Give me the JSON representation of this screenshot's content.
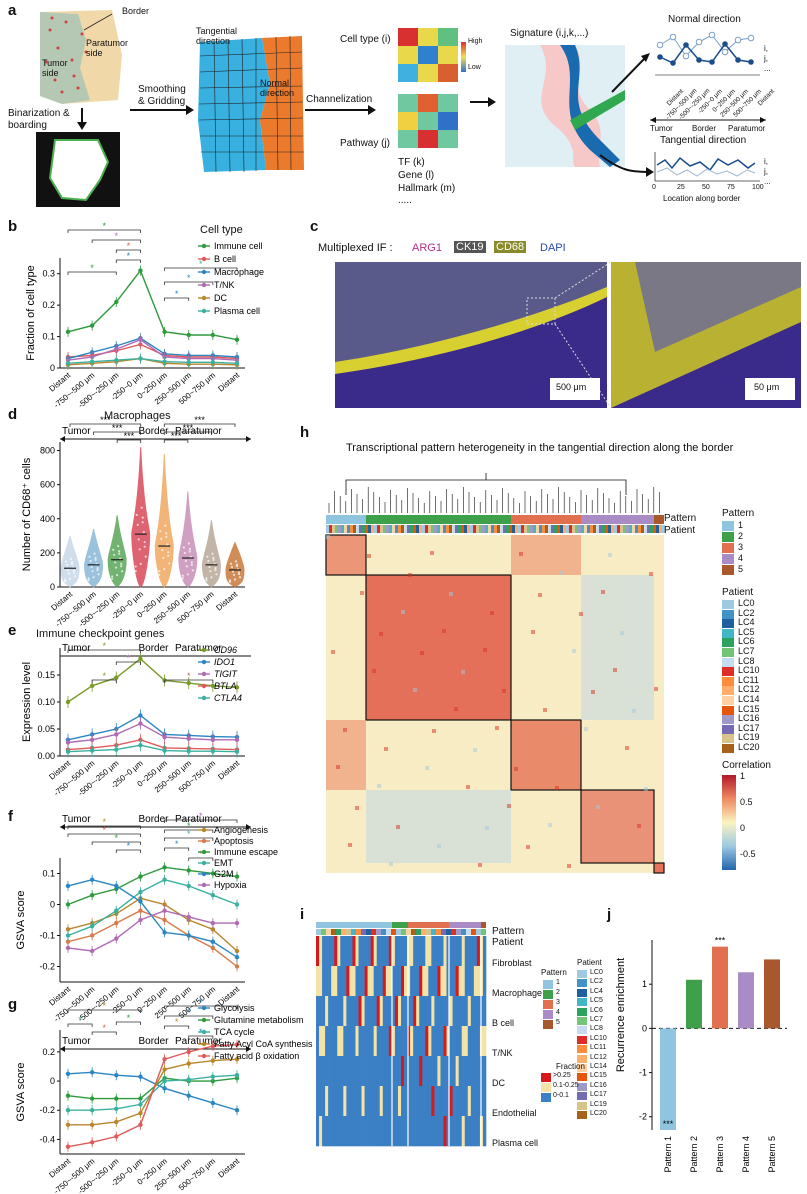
{
  "panel_a": {
    "letter": "a",
    "border": "Border",
    "paratumor_side": "Paratumor side",
    "tumor_side": "Tumor side",
    "binarization": "Binarization & boarding",
    "smoothing": "Smoothing & Gridding",
    "tangential_direction": "Tangential direction",
    "normal_direction": "Normal direction",
    "channelization": "Channelization",
    "cell_type": "Cell type (i)",
    "pathway": "Pathway (j)",
    "high": "High",
    "low": "Low",
    "tf": "TF (k)",
    "gene": "Gene (l)",
    "hallmark": "Hallmark (m)",
    "dots": ".....",
    "signature": "Signature (i,j,k,...)",
    "normal_title": "Normal direction",
    "tangential_title": "Tangential direction",
    "normal_ticks": [
      "Distant",
      "-750~-500 μm",
      "-500~-250 μm",
      "-250~0 μm",
      "0~250 μm",
      "250~500 μm",
      "500~750 μm",
      "Distant"
    ],
    "tumor": "Tumor",
    "border2": "Border",
    "paratumor": "Paratumor",
    "tang_ticks": [
      "0",
      "25",
      "50",
      "75",
      "100"
    ],
    "tang_xlabel": "Location along border",
    "side_labels": [
      "i,",
      "j,",
      "..."
    ]
  },
  "dist_ticks": [
    "Distant",
    "-750~-500 μm",
    "-500~-250 μm",
    "-250~0 μm",
    "0~250 μm",
    "250~500 μm",
    "500~750 μm",
    "Distant"
  ],
  "axis_group": {
    "tumor": "Tumor",
    "border": "Border",
    "paratumor": "Paratumor"
  },
  "panel_b": {
    "letter": "b",
    "legend_title": "Cell type",
    "ylabel": "Fraction of cell type",
    "sig": "*",
    "chart_data": {
      "type": "line",
      "ylabel": "Fraction of cell type",
      "ylim": [
        0,
        0.35
      ],
      "yticks": [
        "0",
        "0.1",
        "0.2",
        "0.3"
      ],
      "series": [
        {
          "name": "Immune cell",
          "color": "#2e9a3e",
          "values": [
            0.115,
            0.135,
            0.21,
            0.31,
            0.115,
            0.105,
            0.105,
            0.09
          ]
        },
        {
          "name": "B cell",
          "color": "#e05a5a",
          "values": [
            0.035,
            0.04,
            0.055,
            0.075,
            0.04,
            0.035,
            0.035,
            0.03
          ]
        },
        {
          "name": "Macrophage",
          "color": "#2a86c2",
          "values": [
            0.03,
            0.05,
            0.07,
            0.095,
            0.045,
            0.04,
            0.04,
            0.035
          ]
        },
        {
          "name": "T/NK",
          "color": "#b06ab3",
          "values": [
            0.025,
            0.035,
            0.06,
            0.09,
            0.035,
            0.03,
            0.03,
            0.025
          ]
        },
        {
          "name": "DC",
          "color": "#b8862b",
          "values": [
            0.01,
            0.015,
            0.02,
            0.03,
            0.015,
            0.012,
            0.012,
            0.01
          ]
        },
        {
          "name": "Plasma cell",
          "color": "#3cb0a0",
          "values": [
            0.015,
            0.02,
            0.025,
            0.03,
            0.02,
            0.018,
            0.018,
            0.015
          ]
        }
      ]
    }
  },
  "panel_c": {
    "letter": "c",
    "prefix": "Multiplexed IF :",
    "arg1": "ARG1",
    "ck19": "CK19",
    "cd68": "CD68",
    "dapi": "DAPI",
    "scale1": "500 μm",
    "scale2": "50 μm"
  },
  "panel_d": {
    "letter": "d",
    "title": "Macrophages",
    "ylabel": "Number of CD68⁺ cells",
    "sig": "***",
    "chart_data": {
      "type": "violin",
      "title": "Macrophages",
      "ylim": [
        0,
        850
      ],
      "yticks": [
        "0",
        "200",
        "400",
        "600",
        "800"
      ],
      "colors": [
        "#c8d8e8",
        "#8ab8d8",
        "#5aa65a",
        "#d94a5a",
        "#f0a860",
        "#c890b8",
        "#b8a898",
        "#c87a3a"
      ],
      "medians": [
        110,
        130,
        160,
        310,
        240,
        170,
        130,
        100
      ],
      "maxima": [
        300,
        340,
        420,
        820,
        780,
        560,
        390,
        260
      ]
    }
  },
  "panel_e": {
    "letter": "e",
    "title": "Immune checkpoint genes",
    "ylabel": "Expression level",
    "sig": "*",
    "chart_data": {
      "type": "line",
      "ylim": [
        0,
        0.2
      ],
      "yticks": [
        "0.00",
        "0.05",
        "0.10",
        "0.15"
      ],
      "series": [
        {
          "name": "CD96",
          "color": "#7a9a2a",
          "values": [
            0.1,
            0.13,
            0.145,
            0.18,
            0.14,
            0.135,
            0.13,
            0.127
          ]
        },
        {
          "name": "IDO1",
          "color": "#2a86c2",
          "values": [
            0.03,
            0.04,
            0.05,
            0.075,
            0.04,
            0.038,
            0.036,
            0.035
          ]
        },
        {
          "name": "TIGIT",
          "color": "#b06ab3",
          "values": [
            0.025,
            0.03,
            0.04,
            0.06,
            0.035,
            0.032,
            0.03,
            0.03
          ]
        },
        {
          "name": "BTLA",
          "color": "#e05a5a",
          "values": [
            0.012,
            0.015,
            0.02,
            0.03,
            0.015,
            0.014,
            0.013,
            0.012
          ]
        },
        {
          "name": "CTLA4",
          "color": "#3cb0a0",
          "values": [
            0.008,
            0.01,
            0.012,
            0.02,
            0.01,
            0.009,
            0.009,
            0.008
          ]
        }
      ]
    }
  },
  "panel_f": {
    "letter": "f",
    "ylabel": "GSVA score",
    "sig": "*",
    "chart_data": {
      "type": "line",
      "ylim": [
        -0.25,
        0.15
      ],
      "yticks": [
        "0.1",
        "0",
        "-0.1",
        "-0.2"
      ],
      "series": [
        {
          "name": "Angiogenesis",
          "color": "#b8862b",
          "values": [
            -0.08,
            -0.06,
            -0.03,
            0.02,
            0.0,
            -0.05,
            -0.08,
            -0.15
          ]
        },
        {
          "name": "Apoptosis",
          "color": "#d87a4a",
          "values": [
            -0.12,
            -0.1,
            -0.06,
            -0.02,
            -0.05,
            -0.1,
            -0.14,
            -0.2
          ]
        },
        {
          "name": "Immune escape",
          "color": "#2e9a3e",
          "values": [
            0.0,
            0.03,
            0.05,
            0.09,
            0.12,
            0.11,
            0.1,
            0.09
          ]
        },
        {
          "name": "EMT",
          "color": "#3cb0a0",
          "values": [
            -0.1,
            -0.07,
            -0.02,
            0.04,
            0.08,
            0.06,
            0.03,
            0.0
          ]
        },
        {
          "name": "G2M",
          "color": "#2a86c2",
          "values": [
            0.06,
            0.08,
            0.06,
            0.01,
            -0.09,
            -0.1,
            -0.12,
            -0.17
          ]
        },
        {
          "name": "Hypoxia",
          "color": "#b06ab3",
          "values": [
            -0.14,
            -0.15,
            -0.11,
            -0.05,
            -0.02,
            -0.04,
            -0.06,
            -0.06
          ]
        }
      ]
    }
  },
  "panel_g": {
    "letter": "g",
    "ylabel": "GSVA score",
    "sig": "*",
    "chart_data": {
      "type": "line",
      "ylim": [
        -0.5,
        0.35
      ],
      "yticks": [
        "0.2",
        "0",
        "-0.2",
        "-0.4"
      ],
      "series": [
        {
          "name": "Glycolysis",
          "color": "#2a86c2",
          "values": [
            0.05,
            0.06,
            0.04,
            0.03,
            -0.05,
            -0.1,
            -0.15,
            -0.2
          ]
        },
        {
          "name": "Glutamine metabolism",
          "color": "#2e9a3e",
          "values": [
            -0.1,
            -0.12,
            -0.12,
            -0.12,
            0.02,
            0.0,
            0.0,
            0.02
          ]
        },
        {
          "name": "TCA cycle",
          "color": "#3cb0a0",
          "values": [
            -0.2,
            -0.2,
            -0.19,
            -0.16,
            0.0,
            0.01,
            0.03,
            0.04
          ]
        },
        {
          "name": "Fatty Acyl CoA synthesis",
          "color": "#b8862b",
          "values": [
            -0.3,
            -0.3,
            -0.28,
            -0.22,
            0.08,
            0.12,
            0.14,
            0.15
          ]
        },
        {
          "name": "Fatty acid β oxidation",
          "color": "#e05a5a",
          "values": [
            -0.45,
            -0.42,
            -0.38,
            -0.3,
            0.15,
            0.2,
            0.24,
            0.25
          ]
        }
      ]
    }
  },
  "panel_h": {
    "letter": "h",
    "title": "Transcriptional pattern heterogeneity in the tangential direction along the border",
    "pattern": "Pattern",
    "patient": "Patient",
    "pattern_legend_title": "Pattern",
    "pattern_items": [
      "1",
      "2",
      "3",
      "4",
      "5"
    ],
    "pattern_colors": [
      "#8fc5df",
      "#3ea04a",
      "#e07050",
      "#a98bc6",
      "#a8582c"
    ],
    "patient_legend_title": "Patient",
    "patient_items": [
      "LC0",
      "LC2",
      "LC4",
      "LC5",
      "LC6",
      "LC7",
      "LC8",
      "LC10",
      "LC11",
      "LC12",
      "LC14",
      "LC15",
      "LC16",
      "LC17",
      "LC19",
      "LC20"
    ],
    "patient_colors": [
      "#9ecae1",
      "#4292c6",
      "#1f5f9e",
      "#41b6c4",
      "#2ca25f",
      "#74c476",
      "#c6dbef",
      "#de2d26",
      "#fd8d3c",
      "#fdae6b",
      "#fdd0a2",
      "#e6550d",
      "#9e9ac8",
      "#756bb1",
      "#d8c38a",
      "#a6611a"
    ],
    "corr_title": "Correlation",
    "corr_ticks": [
      "1",
      "0.5",
      "0",
      "-0.5"
    ]
  },
  "panel_i": {
    "letter": "i",
    "pattern": "Pattern",
    "patient": "Patient",
    "rows": [
      "Fibroblast",
      "Macrophage",
      "B cell",
      "T/NK",
      "DC",
      "Endothelial",
      "Plasma cell"
    ],
    "pattern_legend_title": "Pattern",
    "pattern_items": [
      "1",
      "2",
      "3",
      "4",
      "5"
    ],
    "patient_legend_title": "Patient",
    "patient_items": [
      "LC0",
      "LC2",
      "LC4",
      "LC5",
      "LC6",
      "LC7",
      "LC8",
      "LC10",
      "LC11",
      "LC12",
      "LC14",
      "LC15",
      "LC16",
      "LC17",
      "LC19",
      "LC20"
    ],
    "fraction_title": "Fraction",
    "fraction_items": [
      "0.25",
      "0.1-0.25",
      "0-0.1"
    ],
    "fraction_prefix": ">",
    "fraction_colors": [
      "#d7191c",
      "#f3e3a6",
      "#3b7fc4"
    ]
  },
  "panel_j": {
    "letter": "j",
    "ylabel": "Recurrence enrichment",
    "chart_data": {
      "type": "bar",
      "categories": [
        "Pattern 1",
        "Pattern 2",
        "Pattern 3",
        "Pattern 4",
        "Pattern 5"
      ],
      "values": [
        -2.3,
        1.1,
        1.85,
        1.27,
        1.56
      ],
      "colors": [
        "#8fc5df",
        "#3ea04a",
        "#e07050",
        "#a98bc6",
        "#a8582c"
      ],
      "ylim": [
        -2.3,
        2.0
      ],
      "yticks": [
        "1",
        "0",
        "-1",
        "-2"
      ],
      "annotations": [
        "***",
        "",
        "***",
        "",
        ""
      ]
    }
  }
}
